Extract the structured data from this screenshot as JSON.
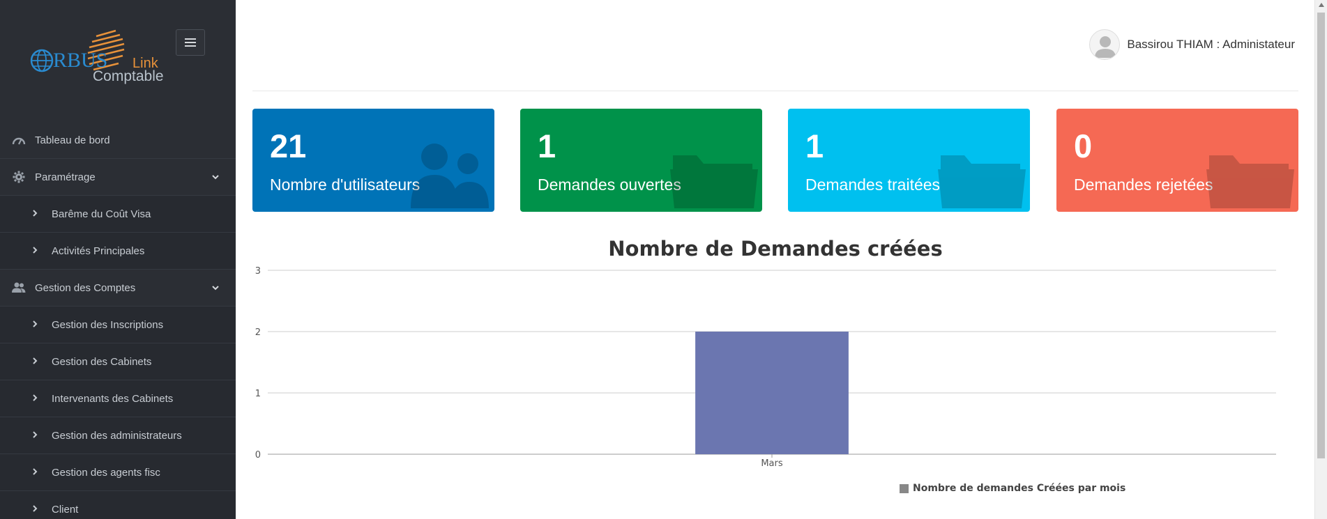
{
  "app": {
    "logo_word": "ORBUS",
    "logo_link": "Link",
    "logo_sub": "Comptable"
  },
  "user": {
    "display": "Bassirou THIAM : Administateur"
  },
  "sidebar": {
    "items": [
      {
        "label": "Tableau de bord",
        "icon": "dashboard-icon",
        "type": "top"
      },
      {
        "label": "Paramétrage",
        "icon": "gear-icon",
        "type": "top",
        "expanded": true
      },
      {
        "label": "Barême du Coût Visa",
        "type": "sub"
      },
      {
        "label": "Activités Principales",
        "type": "sub"
      },
      {
        "label": "Gestion des Comptes",
        "icon": "users-icon",
        "type": "top",
        "expanded": true
      },
      {
        "label": "Gestion des Inscriptions",
        "type": "sub"
      },
      {
        "label": "Gestion des Cabinets",
        "type": "sub"
      },
      {
        "label": "Intervenants des Cabinets",
        "type": "sub"
      },
      {
        "label": "Gestion des administrateurs",
        "type": "sub"
      },
      {
        "label": "Gestion des agents fisc",
        "type": "sub"
      },
      {
        "label": "Client",
        "type": "sub"
      }
    ]
  },
  "cards": [
    {
      "value": "21",
      "label": "Nombre d'utilisateurs",
      "color": "#0073b7",
      "icon": "users-icon"
    },
    {
      "value": "1",
      "label": "Demandes ouvertes",
      "color": "#00924a",
      "icon": "folder-icon"
    },
    {
      "value": "1",
      "label": "Demandes traitées",
      "color": "#00c0ef",
      "icon": "folder-icon"
    },
    {
      "value": "0",
      "label": "Demandes rejetées",
      "color": "#f56954",
      "icon": "folder-icon"
    }
  ],
  "chart_data": {
    "type": "bar",
    "title": "Nombre de Demandes créées",
    "categories": [
      "Mars"
    ],
    "series": [
      {
        "name": "Nombre de demandes Créées par mois",
        "values": [
          2
        ],
        "color": "#6b76b0"
      }
    ],
    "ylim": [
      0,
      3
    ],
    "yticks": [
      0,
      1,
      2,
      3
    ],
    "grid": true,
    "legend": "bottom"
  }
}
